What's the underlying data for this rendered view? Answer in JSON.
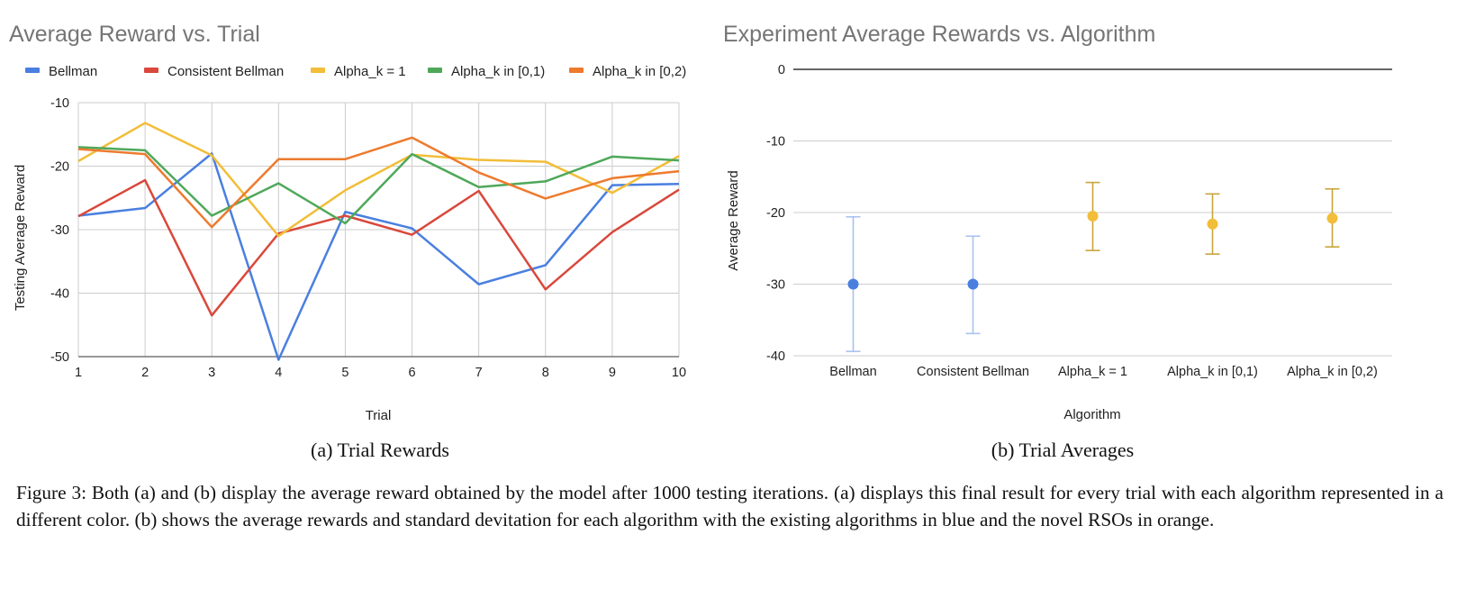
{
  "chart_data": [
    {
      "type": "line",
      "title": "Average Reward vs. Trial",
      "xlabel": "Trial",
      "ylabel": "Testing Average Reward",
      "x": [
        1,
        2,
        3,
        4,
        5,
        6,
        7,
        8,
        9,
        10
      ],
      "xlim": [
        1,
        10
      ],
      "ylim": [
        -50,
        -10
      ],
      "yticks": [
        -10,
        -20,
        -30,
        -40,
        -50
      ],
      "grid": true,
      "legend_position": "top",
      "series": [
        {
          "name": "Bellman",
          "color": "#4a7fe0",
          "values": [
            -27.8,
            -26.6,
            -18.0,
            -50.5,
            -27.2,
            -29.8,
            -38.6,
            -35.6,
            -23.0,
            -22.8
          ]
        },
        {
          "name": "Consistent Bellman",
          "color": "#d9483b",
          "values": [
            -27.9,
            -22.2,
            -43.5,
            -30.6,
            -27.8,
            -30.8,
            -23.9,
            -39.4,
            -30.4,
            -23.7
          ]
        },
        {
          "name": "Alpha_k = 1",
          "color": "#f2bd38",
          "values": [
            -19.2,
            -13.2,
            -18.3,
            -31.0,
            -23.8,
            -18.2,
            -19.0,
            -19.3,
            -24.2,
            -18.4
          ]
        },
        {
          "name": "Alpha_k in [0,1)",
          "color": "#4fa85a",
          "values": [
            -17.0,
            -17.5,
            -27.8,
            -22.7,
            -29.0,
            -18.1,
            -23.3,
            -22.4,
            -18.5,
            -19.1
          ]
        },
        {
          "name": "Alpha_k in [0,2)",
          "color": "#ee7a2e",
          "values": [
            -17.3,
            -18.1,
            -29.6,
            -18.9,
            -18.9,
            -15.5,
            -21.0,
            -25.1,
            -21.9,
            -20.8
          ]
        }
      ],
      "subcaption": "(a) Trial Rewards"
    },
    {
      "type": "scatter",
      "title": "Experiment Average Rewards vs. Algorithm",
      "xlabel": "Algorithm",
      "ylabel": "Average Reward",
      "categories": [
        "Bellman",
        "Consistent Bellman",
        "Alpha_k = 1",
        "Alpha_k in [0,1)",
        "Alpha_k in [0,2)"
      ],
      "values": [
        -30.0,
        -30.0,
        -20.5,
        -21.6,
        -20.8
      ],
      "error_low": [
        -39.4,
        -36.9,
        -25.3,
        -25.8,
        -24.8
      ],
      "error_high": [
        -20.6,
        -23.3,
        -15.8,
        -17.4,
        -16.7
      ],
      "point_colors": [
        "#4a7fe0",
        "#4a7fe0",
        "#f2bd38",
        "#f2bd38",
        "#f2bd38"
      ],
      "errorbar_colors": [
        "#a9c2ef",
        "#a9c2ef",
        "#c9a43c",
        "#c9a43c",
        "#c9a43c"
      ],
      "ylim": [
        -40,
        0
      ],
      "yticks": [
        0,
        -10,
        -20,
        -30,
        -40
      ],
      "grid": true,
      "subcaption": "(b) Trial Averages"
    }
  ],
  "caption": "Figure 3: Both (a) and (b) display the average reward obtained by the model after 1000 testing iterations. (a) displays this final result for every trial with each algorithm represented in a different color. (b) shows the average rewards and standard devitation for each algorithm with the existing algorithms in blue and the novel RSOs in orange."
}
